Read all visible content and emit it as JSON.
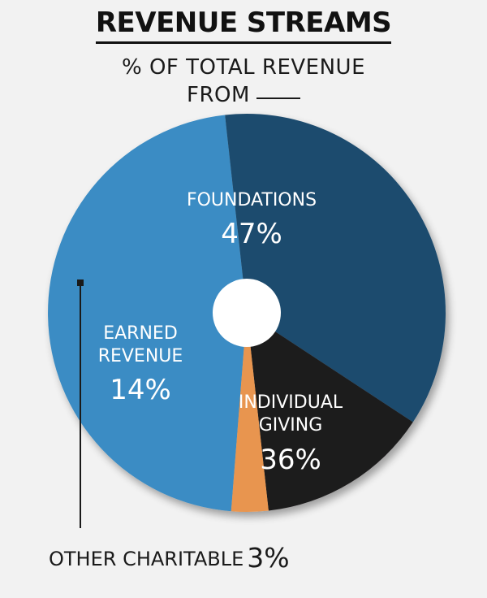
{
  "title": "REVENUE STREAMS",
  "subtitle_line1": "% OF  TOTAL REVENUE",
  "subtitle_line2": "FROM",
  "chart_data": {
    "type": "pie",
    "title": "REVENUE STREAMS",
    "subtitle": "% OF TOTAL REVENUE FROM ____",
    "slices": [
      {
        "label": "FOUNDATIONS",
        "value": 47,
        "value_label": "47%",
        "color": "#3a8cc4"
      },
      {
        "label": "INDIVIDUAL GIVING",
        "value": 36,
        "value_label": "36%",
        "color": "#1e4c6e"
      },
      {
        "label": "EARNED REVENUE",
        "value": 14,
        "value_label": "14%",
        "color": "#1c1a1b"
      },
      {
        "label": "OTHER CHARITABLE",
        "value": 3,
        "value_label": "3%",
        "color": "#e8954f"
      }
    ],
    "donut_hole": true
  },
  "labels": {
    "foundations": [
      "FOUNDATIONS"
    ],
    "individual": [
      "INDIVIDUAL",
      "GIVING"
    ],
    "earned": [
      "EARNED",
      "REVENUE"
    ],
    "other": "OTHER CHARITABLE"
  },
  "colors": {
    "background": "#f2f2f2",
    "hole": "#ffffff",
    "label_text": "#ffffff",
    "leader": "#1a1a1a"
  }
}
